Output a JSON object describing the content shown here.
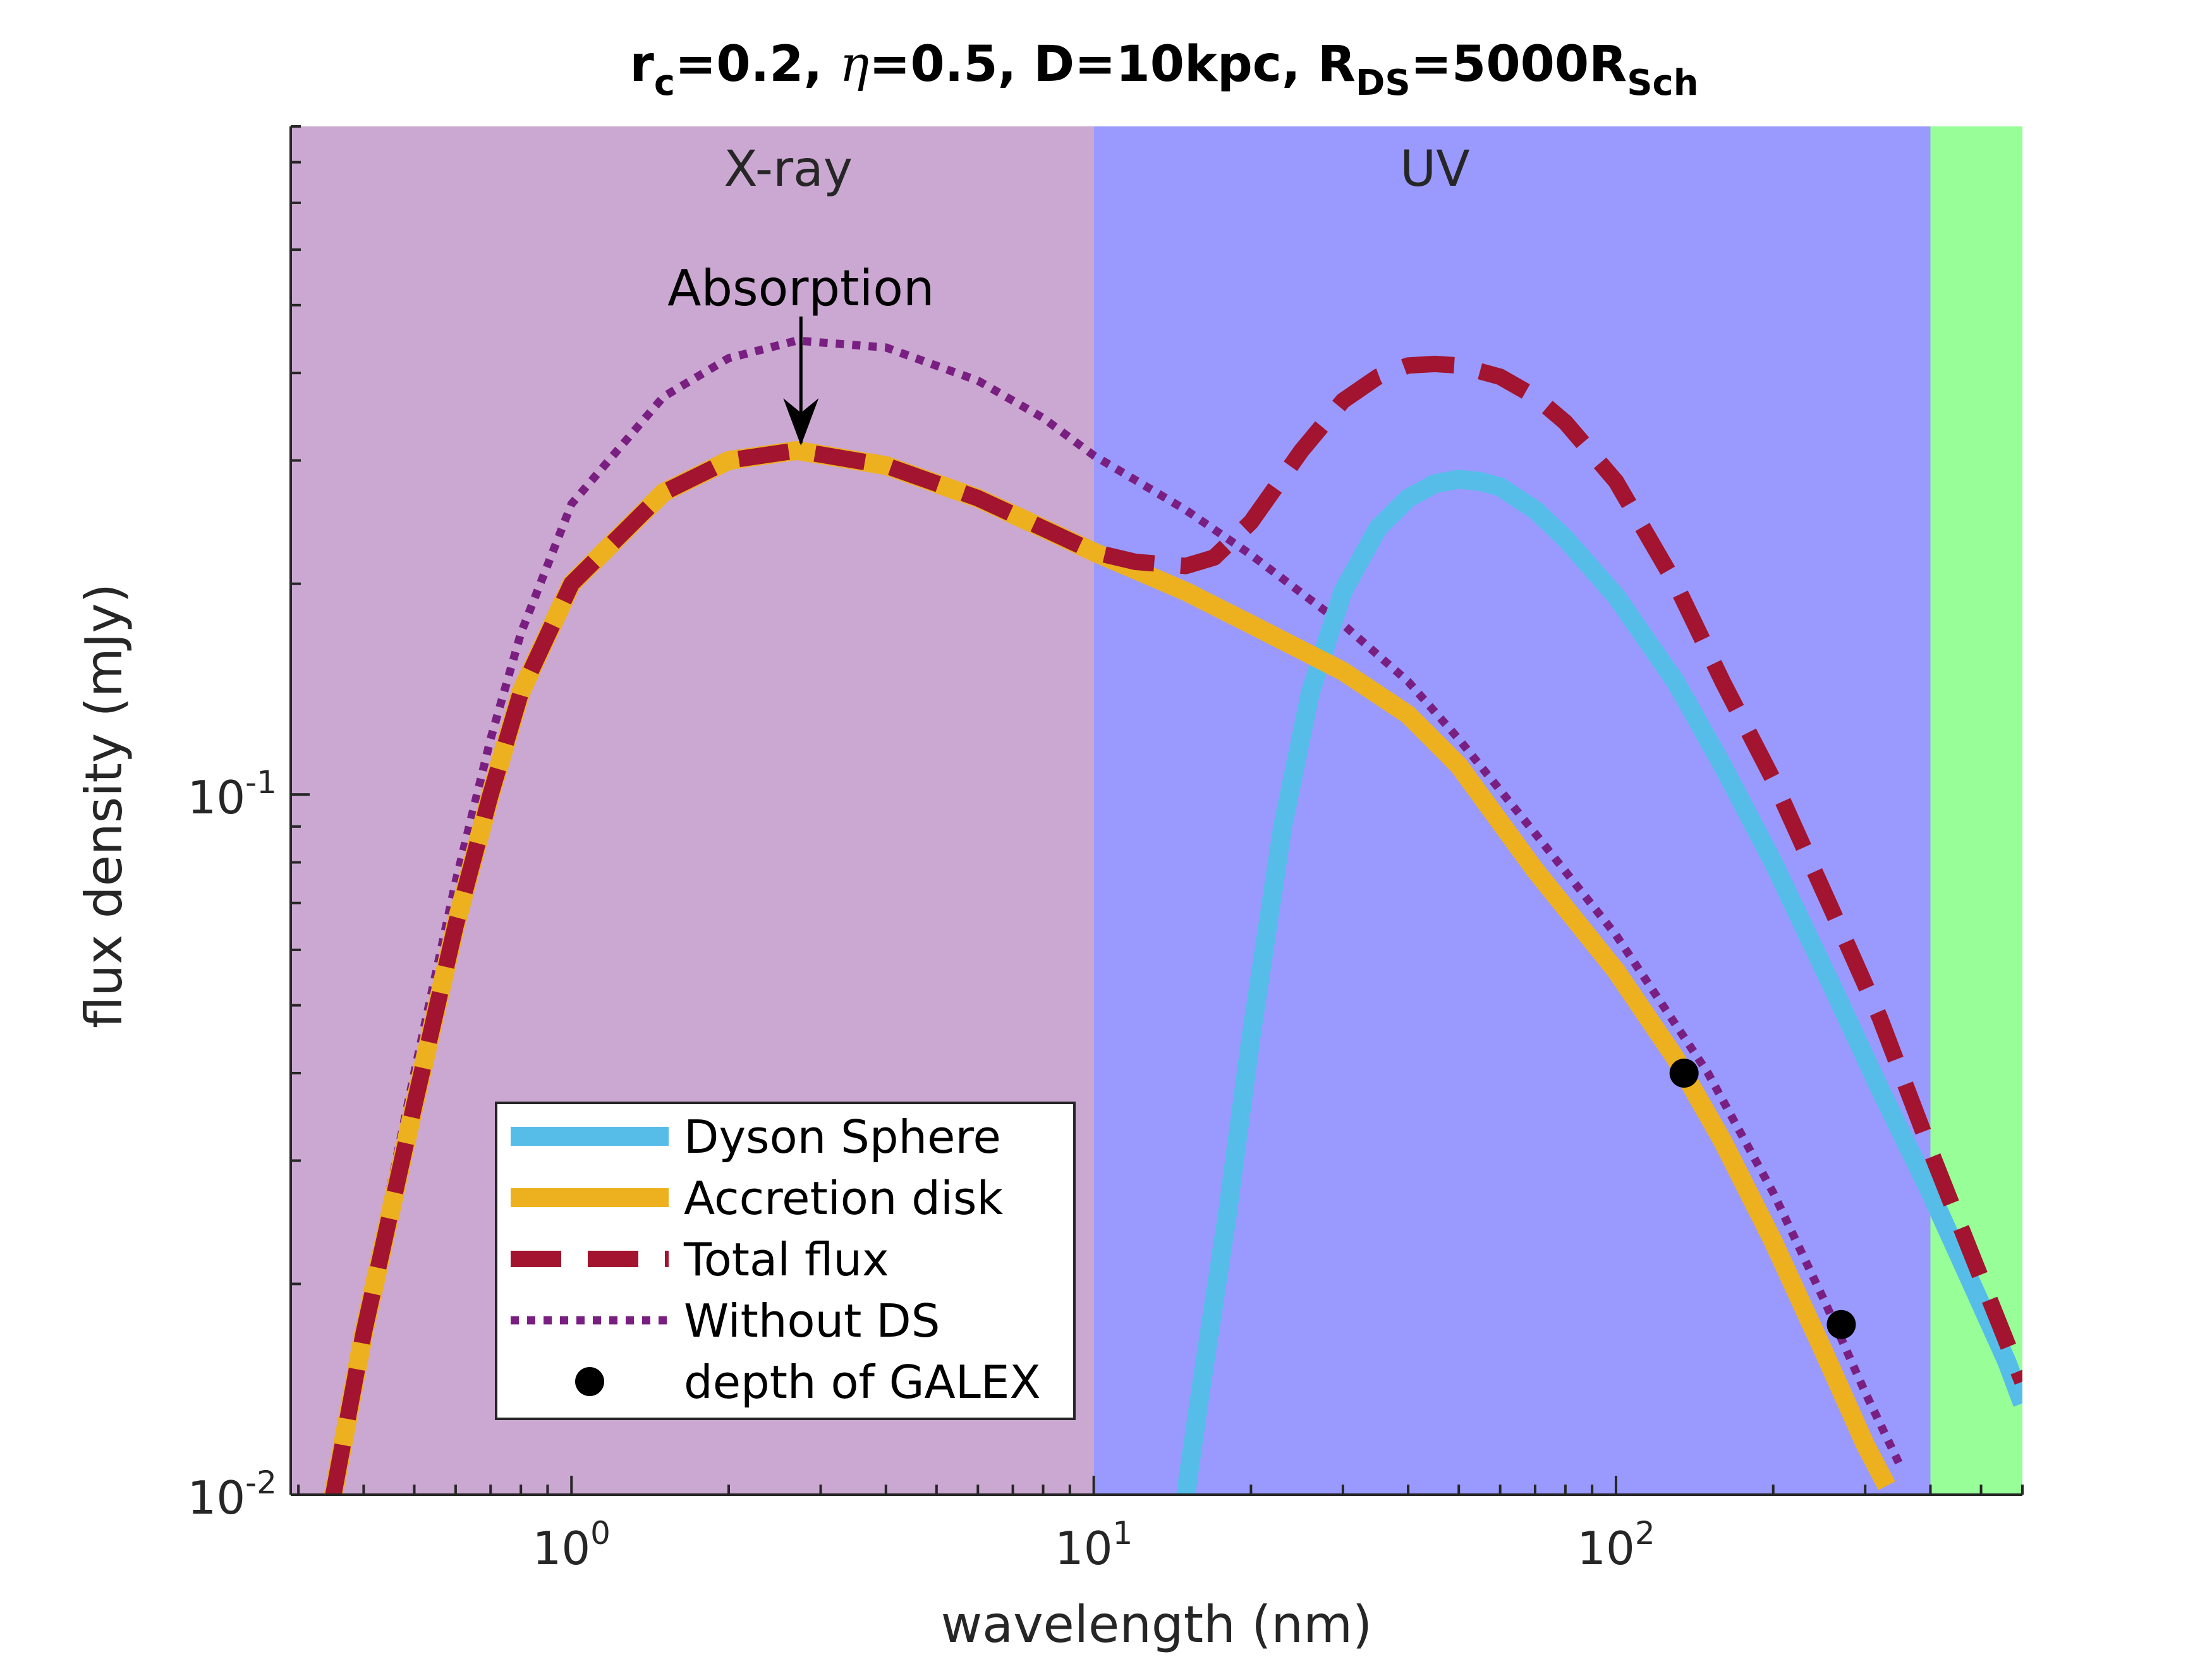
{
  "chart_data": {
    "type": "line",
    "title": {
      "r_main": "r",
      "r_sub": "c",
      "r_value": "=0.2, ",
      "eta_symbol": "η",
      "eta_value": "=0.5, D=10kpc, ",
      "R_main": "R",
      "R_sub": "DS",
      "R_value": "=5000R",
      "Sch_sub": "Sch"
    },
    "xlabel": "wavelength (nm)",
    "ylabel": "flux density (mJy)",
    "xscale": "log",
    "yscale": "log",
    "xlim": [
      0.29,
      600
    ],
    "ylim": [
      0.01,
      0.9
    ],
    "x_ticks": [
      {
        "value": 1,
        "base": "10",
        "exp": "0"
      },
      {
        "value": 10,
        "base": "10",
        "exp": "1"
      },
      {
        "value": 100,
        "base": "10",
        "exp": "2"
      }
    ],
    "y_ticks": [
      {
        "value": 0.01,
        "base": "10",
        "exp": "-2"
      },
      {
        "value": 0.1,
        "base": "10",
        "exp": "-1"
      }
    ],
    "bands": [
      {
        "name": "X-ray",
        "label": "X-ray",
        "x_start": 0.29,
        "x_end": 10,
        "color": "#cba8d1",
        "label_x": 2.6,
        "label_y": 0.74
      },
      {
        "name": "UV",
        "label": "UV",
        "x_start": 10,
        "x_end": 400,
        "color": "#9a9afe",
        "label_x": 45,
        "label_y": 0.74
      },
      {
        "name": "optical",
        "label": "",
        "x_start": 400,
        "x_end": 600,
        "color": "#98fe98"
      }
    ],
    "series": [
      {
        "name": "Without DS",
        "color": "#7a1f82",
        "style": "dotted",
        "x": [
          0.35,
          0.4,
          0.5,
          0.6,
          0.7,
          0.8,
          1,
          1.5,
          2,
          2.7,
          4,
          6,
          8,
          10,
          15,
          20,
          30,
          40,
          50,
          70,
          100,
          150,
          200,
          250,
          300,
          350
        ],
        "y": [
          0.01,
          0.018,
          0.04,
          0.075,
          0.12,
          0.17,
          0.26,
          0.37,
          0.42,
          0.445,
          0.435,
          0.39,
          0.345,
          0.305,
          0.255,
          0.22,
          0.175,
          0.145,
          0.12,
          0.088,
          0.063,
          0.04,
          0.027,
          0.019,
          0.014,
          0.011
        ]
      },
      {
        "name": "Dyson Sphere",
        "color": "#56bde9",
        "style": "solid",
        "x": [
          15,
          16,
          18,
          20,
          23,
          26,
          30,
          35,
          40,
          45,
          50,
          55,
          60,
          70,
          80,
          100,
          130,
          160,
          200,
          260,
          320,
          400,
          480,
          560,
          600
        ],
        "y": [
          0.01,
          0.014,
          0.025,
          0.045,
          0.09,
          0.14,
          0.195,
          0.24,
          0.265,
          0.278,
          0.282,
          0.28,
          0.275,
          0.255,
          0.232,
          0.192,
          0.145,
          0.11,
          0.08,
          0.053,
          0.038,
          0.027,
          0.02,
          0.0155,
          0.0135
        ]
      },
      {
        "name": "Accretion disk",
        "color": "#edb120",
        "style": "solid",
        "x": [
          0.35,
          0.4,
          0.5,
          0.6,
          0.7,
          0.8,
          1,
          1.5,
          2,
          2.7,
          4,
          6,
          8,
          10,
          15,
          20,
          30,
          40,
          50,
          70,
          100,
          130,
          160,
          200,
          250,
          300,
          330
        ],
        "y": [
          0.01,
          0.017,
          0.036,
          0.065,
          0.1,
          0.14,
          0.2,
          0.27,
          0.3,
          0.31,
          0.295,
          0.265,
          0.24,
          0.222,
          0.195,
          0.175,
          0.15,
          0.13,
          0.11,
          0.078,
          0.056,
          0.042,
          0.032,
          0.023,
          0.016,
          0.0118,
          0.0103
        ]
      },
      {
        "name": "Total flux",
        "color": "#a2142f",
        "style": "dashed",
        "x": [
          0.35,
          0.4,
          0.5,
          0.6,
          0.7,
          0.8,
          1,
          1.5,
          2,
          2.7,
          4,
          6,
          8,
          10,
          12,
          15,
          17,
          20,
          25,
          30,
          35,
          40,
          45,
          50,
          60,
          70,
          80,
          100,
          130,
          160,
          200,
          260,
          320,
          400,
          480,
          560,
          600
        ],
        "y": [
          0.01,
          0.017,
          0.036,
          0.065,
          0.1,
          0.14,
          0.2,
          0.27,
          0.3,
          0.31,
          0.295,
          0.265,
          0.24,
          0.222,
          0.215,
          0.212,
          0.218,
          0.245,
          0.31,
          0.365,
          0.395,
          0.41,
          0.412,
          0.41,
          0.395,
          0.37,
          0.34,
          0.28,
          0.2,
          0.145,
          0.105,
          0.068,
          0.048,
          0.031,
          0.022,
          0.0165,
          0.0145
        ]
      }
    ],
    "points": {
      "name": "depth of GALEX",
      "color": "#000000",
      "x": [
        135,
        270
      ],
      "y": [
        0.04,
        0.0175
      ]
    },
    "annotations": [
      {
        "text": "Absorption",
        "x": 2.75,
        "y": 0.5,
        "arrow_to_y": 0.315
      }
    ],
    "legend": {
      "location": "lower-left",
      "entries": [
        {
          "label": "Dyson Sphere",
          "color": "#56bde9",
          "style": "solid"
        },
        {
          "label": "Accretion disk",
          "color": "#edb120",
          "style": "solid"
        },
        {
          "label": "Total flux",
          "color": "#a2142f",
          "style": "dashed"
        },
        {
          "label": "Without DS",
          "color": "#7a1f82",
          "style": "dotted"
        },
        {
          "label": "depth of GALEX",
          "color": "#000000",
          "style": "marker"
        }
      ]
    }
  }
}
